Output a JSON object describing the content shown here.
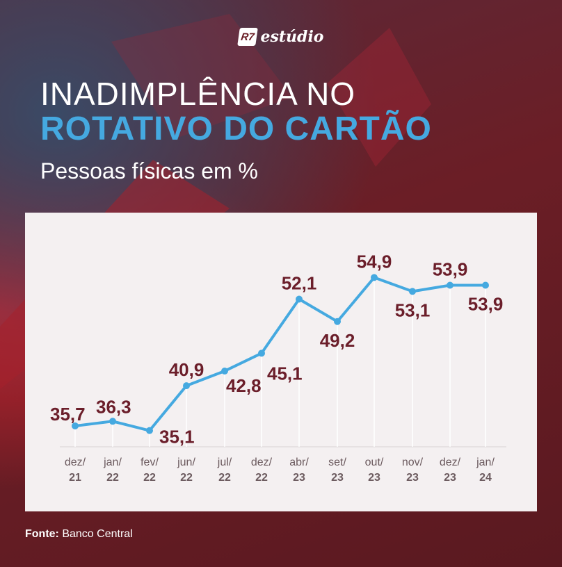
{
  "brand": {
    "badge": "R7",
    "name": "estúdio"
  },
  "header": {
    "title_line1": "INADIMPLÊNCIA NO",
    "title_line2": "ROTATIVO DO CARTÃO",
    "subtitle": "Pessoas físicas em %"
  },
  "footer": {
    "source_label": "Fonte:",
    "source_value": "Banco Central"
  },
  "colors": {
    "line": "#45a9e0",
    "labels": "#6b1e2a",
    "card": "#f4f0f1",
    "background": "#6b1e26"
  },
  "chart_data": {
    "type": "line",
    "title": "INADIMPLÊNCIA NO ROTATIVO DO CARTÃO",
    "subtitle": "Pessoas físicas em %",
    "categories": [
      {
        "month": "dez/",
        "year": "21"
      },
      {
        "month": "jan/",
        "year": "22"
      },
      {
        "month": "fev/",
        "year": "22"
      },
      {
        "month": "jun/",
        "year": "22"
      },
      {
        "month": "jul/",
        "year": "22"
      },
      {
        "month": "dez/",
        "year": "22"
      },
      {
        "month": "abr/",
        "year": "23"
      },
      {
        "month": "set/",
        "year": "23"
      },
      {
        "month": "out/",
        "year": "23"
      },
      {
        "month": "nov/",
        "year": "23"
      },
      {
        "month": "dez/",
        "year": "23"
      },
      {
        "month": "jan/",
        "year": "24"
      }
    ],
    "values": [
      35.7,
      36.3,
      35.1,
      40.9,
      42.8,
      45.1,
      52.1,
      49.2,
      54.9,
      53.1,
      53.9,
      53.9
    ],
    "value_labels": [
      "35,7",
      "36,3",
      "35,1",
      "40,9",
      "42,8",
      "45,1",
      "52,1",
      "49,2",
      "54,9",
      "53,1",
      "53,9",
      "53,9"
    ],
    "label_position": [
      "above",
      "above",
      "below",
      "above",
      "below",
      "right",
      "above",
      "below",
      "above",
      "below",
      "above",
      "below"
    ],
    "ylim": [
      33,
      57
    ],
    "grid": "vertical-light",
    "legend": "none"
  }
}
